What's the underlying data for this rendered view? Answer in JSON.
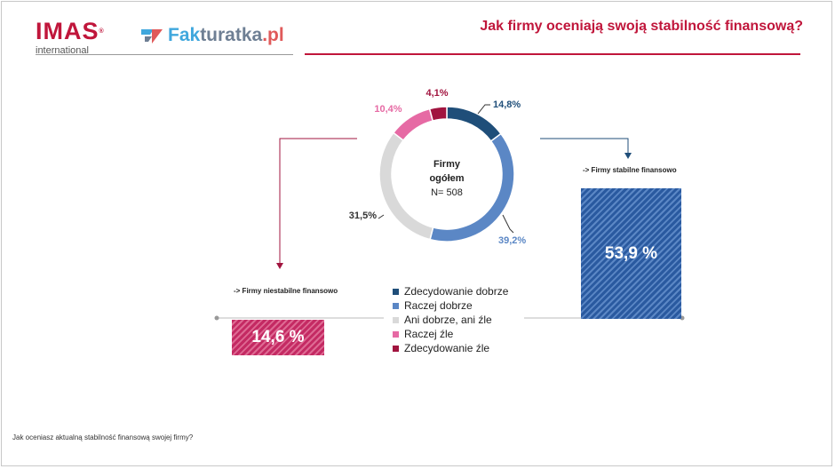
{
  "header": {
    "logo_imas_main": "IMAS",
    "logo_imas_reg": "®",
    "logo_imas_sub": "international",
    "logo_fakturatka_part1": "Fak",
    "logo_fakturatka_part2": "turatka",
    "logo_fakturatka_part3": ".pl",
    "title": "Jak firmy oceniają swoją stabilność finansową?"
  },
  "colors": {
    "accent": "#c0163b",
    "dark_blue": "#1f4e79",
    "mid_blue": "#5b87c5",
    "light_gray": "#d9d9d9",
    "pink": "#e66aa4",
    "dark_red": "#a1143f"
  },
  "chart_data": {
    "type": "pie",
    "subtype": "donut",
    "center_label": "Firmy ogółem",
    "center_n": "N= 508",
    "categories": [
      "Zdecydowanie dobrze",
      "Raczej dobrze",
      "Ani dobrze, ani źle",
      "Raczej źle",
      "Zdecydowanie źle"
    ],
    "values": [
      14.8,
      39.2,
      31.5,
      10.4,
      4.1
    ],
    "value_labels": [
      "14,8%",
      "39,2%",
      "31,5%",
      "10,4%",
      "4,1%"
    ],
    "colors": [
      "#1f4e79",
      "#5b87c5",
      "#d9d9d9",
      "#e66aa4",
      "#a1143f"
    ],
    "legend_position": "bottom-center",
    "groups": [
      {
        "label": "-> Firmy niestabilne finansowo",
        "value": 14.6,
        "display": "14,6 %"
      },
      {
        "label": "-> Firmy stabilne finansowo",
        "value": 53.9,
        "display": "53,9 %"
      }
    ]
  },
  "footer": {
    "question": "Jak oceniasz aktualną stabilność finansową swojej firmy?"
  }
}
